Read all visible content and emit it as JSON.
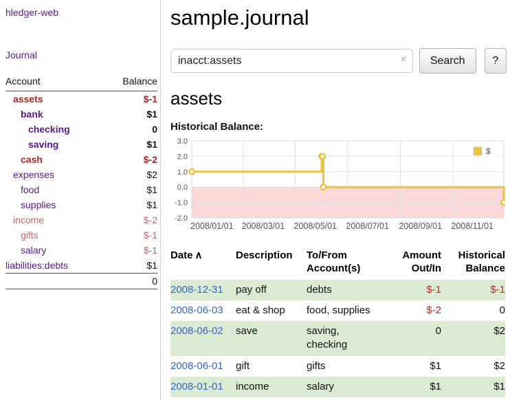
{
  "app": {
    "title": "hledger-web",
    "nav": {
      "journal": "Journal"
    }
  },
  "colors": {
    "link_purple": "#551a8b",
    "negative_dark": "#9d2926",
    "negative_light": "#bd6c6c",
    "text": "#111111",
    "date_link": "#3366cc",
    "negative_amount": "#b02b27",
    "row_stripe": "#dbead3"
  },
  "sidebar": {
    "columns": {
      "account": "Account",
      "balance": "Balance"
    },
    "accounts": [
      {
        "name": "assets",
        "balance": "$-1",
        "indent": 1,
        "bold": true,
        "name_color": "negative_dark",
        "balance_color": "negative_dark"
      },
      {
        "name": "bank",
        "balance": "$1",
        "indent": 2,
        "bold": true,
        "name_color": "link_purple",
        "balance_color": "text"
      },
      {
        "name": "checking",
        "balance": "0",
        "indent": 3,
        "bold": true,
        "name_color": "link_purple",
        "balance_color": "text"
      },
      {
        "name": "saving",
        "balance": "$1",
        "indent": 3,
        "bold": true,
        "name_color": "link_purple",
        "balance_color": "text"
      },
      {
        "name": "cash",
        "balance": "$-2",
        "indent": 2,
        "bold": true,
        "name_color": "negative_dark",
        "balance_color": "negative_dark"
      },
      {
        "name": "expenses",
        "balance": "$2",
        "indent": 1,
        "bold": false,
        "name_color": "link_purple",
        "balance_color": "text"
      },
      {
        "name": "food",
        "balance": "$1",
        "indent": 2,
        "bold": false,
        "name_color": "link_purple",
        "balance_color": "text"
      },
      {
        "name": "supplies",
        "balance": "$1",
        "indent": 2,
        "bold": false,
        "name_color": "link_purple",
        "balance_color": "text"
      },
      {
        "name": "income",
        "balance": "$-2",
        "indent": 1,
        "bold": false,
        "name_color": "negative_light",
        "balance_color": "negative_light"
      },
      {
        "name": "gifts",
        "balance": "$-1",
        "indent": 2,
        "bold": false,
        "name_color": "negative_light",
        "balance_color": "negative_light"
      },
      {
        "name": "salary",
        "balance": "$-1",
        "indent": 2,
        "bold": false,
        "name_color": "link_purple",
        "balance_color": "negative_light"
      },
      {
        "name": "liabilities:debts",
        "balance": "$1",
        "indent": 0,
        "bold": false,
        "name_color": "link_purple",
        "balance_color": "text"
      }
    ],
    "total": "0"
  },
  "main": {
    "title": "sample.journal",
    "search": {
      "value": "inacct:assets",
      "clear_icon": "×",
      "search_button": "Search",
      "help_button": "?"
    },
    "register": {
      "heading": "assets",
      "chart_label": "Historical Balance:",
      "table": {
        "headers": {
          "date": "Date",
          "sort_icon": "∧",
          "description": "Description",
          "tofrom_line1": "To/From",
          "tofrom_line2": "Account(s)",
          "amount_line1": "Amount",
          "amount_line2": "Out/In",
          "hist_line1": "Historical",
          "hist_line2": "Balance"
        },
        "rows": [
          {
            "date": "2008-12-31",
            "description": "pay off",
            "accounts": "debts",
            "amount": "$-1",
            "amount_neg": true,
            "balance": "$-1",
            "balance_neg": true
          },
          {
            "date": "2008-06-03",
            "description": "eat & shop",
            "accounts": "food, supplies",
            "amount": "$-2",
            "amount_neg": true,
            "balance": "0",
            "balance_neg": false
          },
          {
            "date": "2008-06-02",
            "description": "save",
            "accounts": "saving, checking",
            "amount": "0",
            "amount_neg": false,
            "balance": "$2",
            "balance_neg": false
          },
          {
            "date": "2008-06-01",
            "description": "gift",
            "accounts": "gifts",
            "amount": "$1",
            "amount_neg": false,
            "balance": "$2",
            "balance_neg": false
          },
          {
            "date": "2008-01-01",
            "description": "income",
            "accounts": "salary",
            "amount": "$1",
            "amount_neg": false,
            "balance": "$1",
            "balance_neg": false
          }
        ]
      }
    }
  },
  "chart_data": {
    "type": "line",
    "step": true,
    "title": "Historical Balance",
    "series": [
      {
        "name": "$",
        "color": "#edc240",
        "points": [
          [
            "2008-01-01",
            1
          ],
          [
            "2008-06-01",
            2
          ],
          [
            "2008-06-02",
            2
          ],
          [
            "2008-06-03",
            0
          ],
          [
            "2008-12-31",
            -1
          ]
        ]
      }
    ],
    "xrange": [
      "2008-01-01",
      "2008-12-31"
    ],
    "ylim": [
      -2,
      3
    ],
    "yticks": [
      3,
      2,
      1,
      0,
      -1,
      -2
    ],
    "xticks": [
      "2008/01/01",
      "2008/03/01",
      "2008/05/01",
      "2008/07/01",
      "2008/09/01",
      "2008/11/01"
    ],
    "grid": true,
    "negative_region_color": "#fcd9d9",
    "legend_position": "top-right"
  }
}
